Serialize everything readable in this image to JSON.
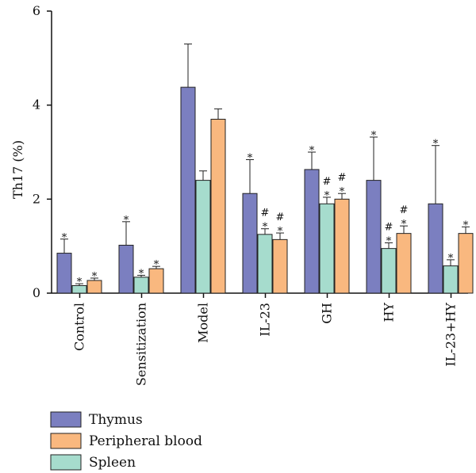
{
  "chart_data": {
    "type": "bar",
    "ylabel": "Th17 (%)",
    "ylim": [
      0,
      6
    ],
    "yticks": [
      0,
      2,
      4,
      6
    ],
    "categories": [
      "Control",
      "Sensitization",
      "Model",
      "IL-23",
      "GH",
      "HY",
      "IL-23+HY"
    ],
    "series": [
      {
        "name": "Thymus",
        "color": "#7b7fc0",
        "values": [
          0.85,
          1.02,
          4.38,
          2.12,
          2.63,
          2.4,
          1.9
        ],
        "errors": [
          0.3,
          0.5,
          0.92,
          0.72,
          0.37,
          0.92,
          1.24
        ],
        "marks": [
          "*",
          "*",
          "",
          "*",
          "*",
          "*",
          "*"
        ]
      },
      {
        "name": "Spleen",
        "color": "#a6dccd",
        "values": [
          0.16,
          0.34,
          2.4,
          1.25,
          1.9,
          0.95,
          0.58
        ],
        "errors": [
          0.04,
          0.04,
          0.2,
          0.12,
          0.14,
          0.12,
          0.13
        ],
        "marks": [
          "*",
          "*",
          "",
          "#*",
          "#*",
          "#*",
          "*"
        ]
      },
      {
        "name": "Peripheral blood",
        "color": "#f9b87f",
        "values": [
          0.27,
          0.52,
          3.7,
          1.14,
          2.0,
          1.27,
          1.27
        ],
        "errors": [
          0.05,
          0.05,
          0.22,
          0.14,
          0.12,
          0.16,
          0.14
        ],
        "marks": [
          "*",
          "*",
          "",
          "#*",
          "#*",
          "#*",
          "*"
        ]
      }
    ],
    "legend": {
      "position": "bottom-left",
      "entries": [
        {
          "name": "Thymus",
          "color": "#7b7fc0"
        },
        {
          "name": "Peripheral blood",
          "color": "#f9b87f"
        },
        {
          "name": "Spleen",
          "color": "#a6dccd"
        }
      ]
    },
    "grid": false
  }
}
